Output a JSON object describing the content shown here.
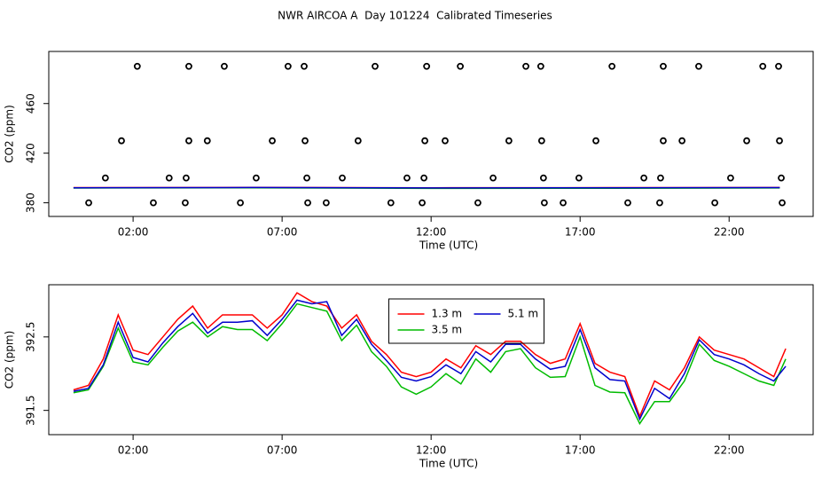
{
  "chart_data": [
    {
      "type": "scatter",
      "title": "NWR AIRCOA A  Day 101224  Calibrated Timeseries",
      "x_label": "Time (UTC)",
      "y_label": "CO2 (ppm)",
      "xlim": [
        -0.83,
        24.82
      ],
      "ylim": [
        369,
        502
      ],
      "xticks": [
        {
          "value": 2,
          "label": "02:00"
        },
        {
          "value": 7,
          "label": "07:00"
        },
        {
          "value": 12,
          "label": "12:00"
        },
        {
          "value": 17,
          "label": "17:00"
        },
        {
          "value": 22,
          "label": "22:00"
        }
      ],
      "yticks": [
        380,
        420,
        460
      ],
      "grid": false,
      "series": [
        {
          "style": "points",
          "color": "#000000",
          "x": [
            2.14,
            3.87,
            5.06,
            7.2,
            7.74,
            10.12,
            11.85,
            12.98,
            15.18,
            15.68,
            18.07,
            19.79,
            20.98,
            23.13,
            23.66,
            1.61,
            3.87,
            4.49,
            6.67,
            7.77,
            9.55,
            11.79,
            12.47,
            14.61,
            15.71,
            17.53,
            19.79,
            20.42,
            22.59,
            23.69,
            1.07,
            3.21,
            3.78,
            6.13,
            7.83,
            9.02,
            11.19,
            11.76,
            14.08,
            15.77,
            16.96,
            19.14,
            19.7,
            22.05,
            23.75,
            0.51,
            2.68,
            3.75,
            5.6,
            7.86,
            8.48,
            10.65,
            11.7,
            13.57,
            15.8,
            16.43,
            18.6,
            19.67,
            21.52,
            23.78
          ],
          "values": [
            490,
            490,
            490,
            490,
            490,
            490,
            490,
            490,
            490,
            490,
            490,
            490,
            490,
            490,
            490,
            430,
            430,
            430,
            430,
            430,
            430,
            430,
            430,
            430,
            430,
            430,
            430,
            430,
            430,
            430,
            400,
            400,
            400,
            400,
            400,
            400,
            400,
            400,
            400,
            400,
            400,
            400,
            400,
            400,
            400,
            380,
            380,
            380,
            380,
            380,
            380,
            380,
            380,
            380,
            380,
            380,
            380,
            380,
            380,
            380
          ]
        },
        {
          "style": "line",
          "color": "#ff0000",
          "x": [
            0,
            6,
            12,
            18,
            23.7
          ],
          "values": [
            392.2,
            392.4,
            392.1,
            392.2,
            392.3
          ]
        },
        {
          "style": "line",
          "color": "#00bb00",
          "x": [
            0,
            6,
            12,
            18,
            23.7
          ],
          "values": [
            391.9,
            392.1,
            391.6,
            391.7,
            392.0
          ]
        },
        {
          "style": "line",
          "color": "#0000cc",
          "x": [
            0,
            6,
            12,
            18,
            23.7
          ],
          "values": [
            392.1,
            392.3,
            392.0,
            392.1,
            392.2
          ]
        }
      ]
    },
    {
      "type": "line",
      "x_label": "Time (UTC)",
      "y_label": "CO2 (ppm)",
      "xlim": [
        -0.83,
        24.82
      ],
      "ylim": [
        391.17,
        393.21
      ],
      "xticks": [
        {
          "value": 2,
          "label": "02:00"
        },
        {
          "value": 7,
          "label": "07:00"
        },
        {
          "value": 12,
          "label": "12:00"
        },
        {
          "value": 17,
          "label": "17:00"
        },
        {
          "value": 22,
          "label": "22:00"
        }
      ],
      "yticks": [
        391.5,
        392.5
      ],
      "grid": false,
      "legend_position": "top",
      "series": [
        {
          "name": "1.3 m",
          "color": "#ff0000",
          "x": [
            0,
            0.5,
            1,
            1.5,
            2,
            2.5,
            3,
            3.5,
            4,
            4.5,
            5,
            5.5,
            6,
            6.5,
            7,
            7.5,
            8,
            8.5,
            9,
            9.5,
            10,
            10.5,
            11,
            11.5,
            12,
            12.5,
            13,
            13.5,
            14,
            14.5,
            15,
            15.5,
            16,
            16.5,
            17,
            17.5,
            18,
            18.5,
            19,
            19.5,
            20,
            20.5,
            21,
            21.5,
            22,
            22.5,
            23,
            23.5,
            23.9
          ],
          "values": [
            391.78,
            391.84,
            392.2,
            392.8,
            392.32,
            392.26,
            392.5,
            392.74,
            392.92,
            392.62,
            392.8,
            392.8,
            392.8,
            392.62,
            392.8,
            393.1,
            392.98,
            392.92,
            392.62,
            392.8,
            392.44,
            392.26,
            392.02,
            391.96,
            392.02,
            392.2,
            392.08,
            392.38,
            392.26,
            392.44,
            392.44,
            392.26,
            392.14,
            392.2,
            392.68,
            392.14,
            392.02,
            391.96,
            391.42,
            391.9,
            391.78,
            392.08,
            392.5,
            392.32,
            392.26,
            392.2,
            392.08,
            391.96,
            392.34
          ]
        },
        {
          "name": "3.5 m",
          "color": "#00bb00",
          "x": [
            0,
            0.5,
            1,
            1.5,
            2,
            2.5,
            3,
            3.5,
            4,
            4.5,
            5,
            5.5,
            6,
            6.5,
            7,
            7.5,
            8,
            8.5,
            9,
            9.5,
            10,
            10.5,
            11,
            11.5,
            12,
            12.5,
            13,
            13.5,
            14,
            14.5,
            15,
            15.5,
            16,
            16.5,
            17,
            17.5,
            18,
            18.5,
            19,
            19.5,
            20,
            20.5,
            21,
            21.5,
            22,
            22.5,
            23,
            23.5,
            23.9
          ],
          "values": [
            391.74,
            391.78,
            392.1,
            392.62,
            392.16,
            392.12,
            392.36,
            392.58,
            392.7,
            392.5,
            392.64,
            392.6,
            392.6,
            392.45,
            392.68,
            392.95,
            392.9,
            392.85,
            392.45,
            392.66,
            392.3,
            392.1,
            391.82,
            391.72,
            391.82,
            392.0,
            391.86,
            392.2,
            392.02,
            392.3,
            392.34,
            392.08,
            391.95,
            391.96,
            392.5,
            391.84,
            391.75,
            391.74,
            391.32,
            391.62,
            391.62,
            391.9,
            392.4,
            392.18,
            392.1,
            392.0,
            391.9,
            391.84,
            392.2
          ]
        },
        {
          "name": "5.1 m",
          "color": "#0000cc",
          "x": [
            0,
            0.5,
            1,
            1.5,
            2,
            2.5,
            3,
            3.5,
            4,
            4.5,
            5,
            5.5,
            6,
            6.5,
            7,
            7.5,
            8,
            8.5,
            9,
            9.5,
            10,
            10.5,
            11,
            11.5,
            12,
            12.5,
            13,
            13.5,
            14,
            14.5,
            15,
            15.5,
            16,
            16.5,
            17,
            17.5,
            18,
            18.5,
            19,
            19.5,
            20,
            20.5,
            21,
            21.5,
            22,
            22.5,
            23,
            23.5,
            23.9
          ],
          "values": [
            391.76,
            391.8,
            392.12,
            392.7,
            392.22,
            392.16,
            392.42,
            392.64,
            392.82,
            392.55,
            392.7,
            392.7,
            392.72,
            392.52,
            392.74,
            393.0,
            392.95,
            392.98,
            392.52,
            392.74,
            392.4,
            392.18,
            391.95,
            391.9,
            391.96,
            392.12,
            392.0,
            392.3,
            392.16,
            392.4,
            392.4,
            392.2,
            392.06,
            392.1,
            392.6,
            392.08,
            391.92,
            391.9,
            391.38,
            391.8,
            391.66,
            392.0,
            392.46,
            392.26,
            392.2,
            392.12,
            392.0,
            391.9,
            392.1
          ]
        }
      ]
    }
  ]
}
